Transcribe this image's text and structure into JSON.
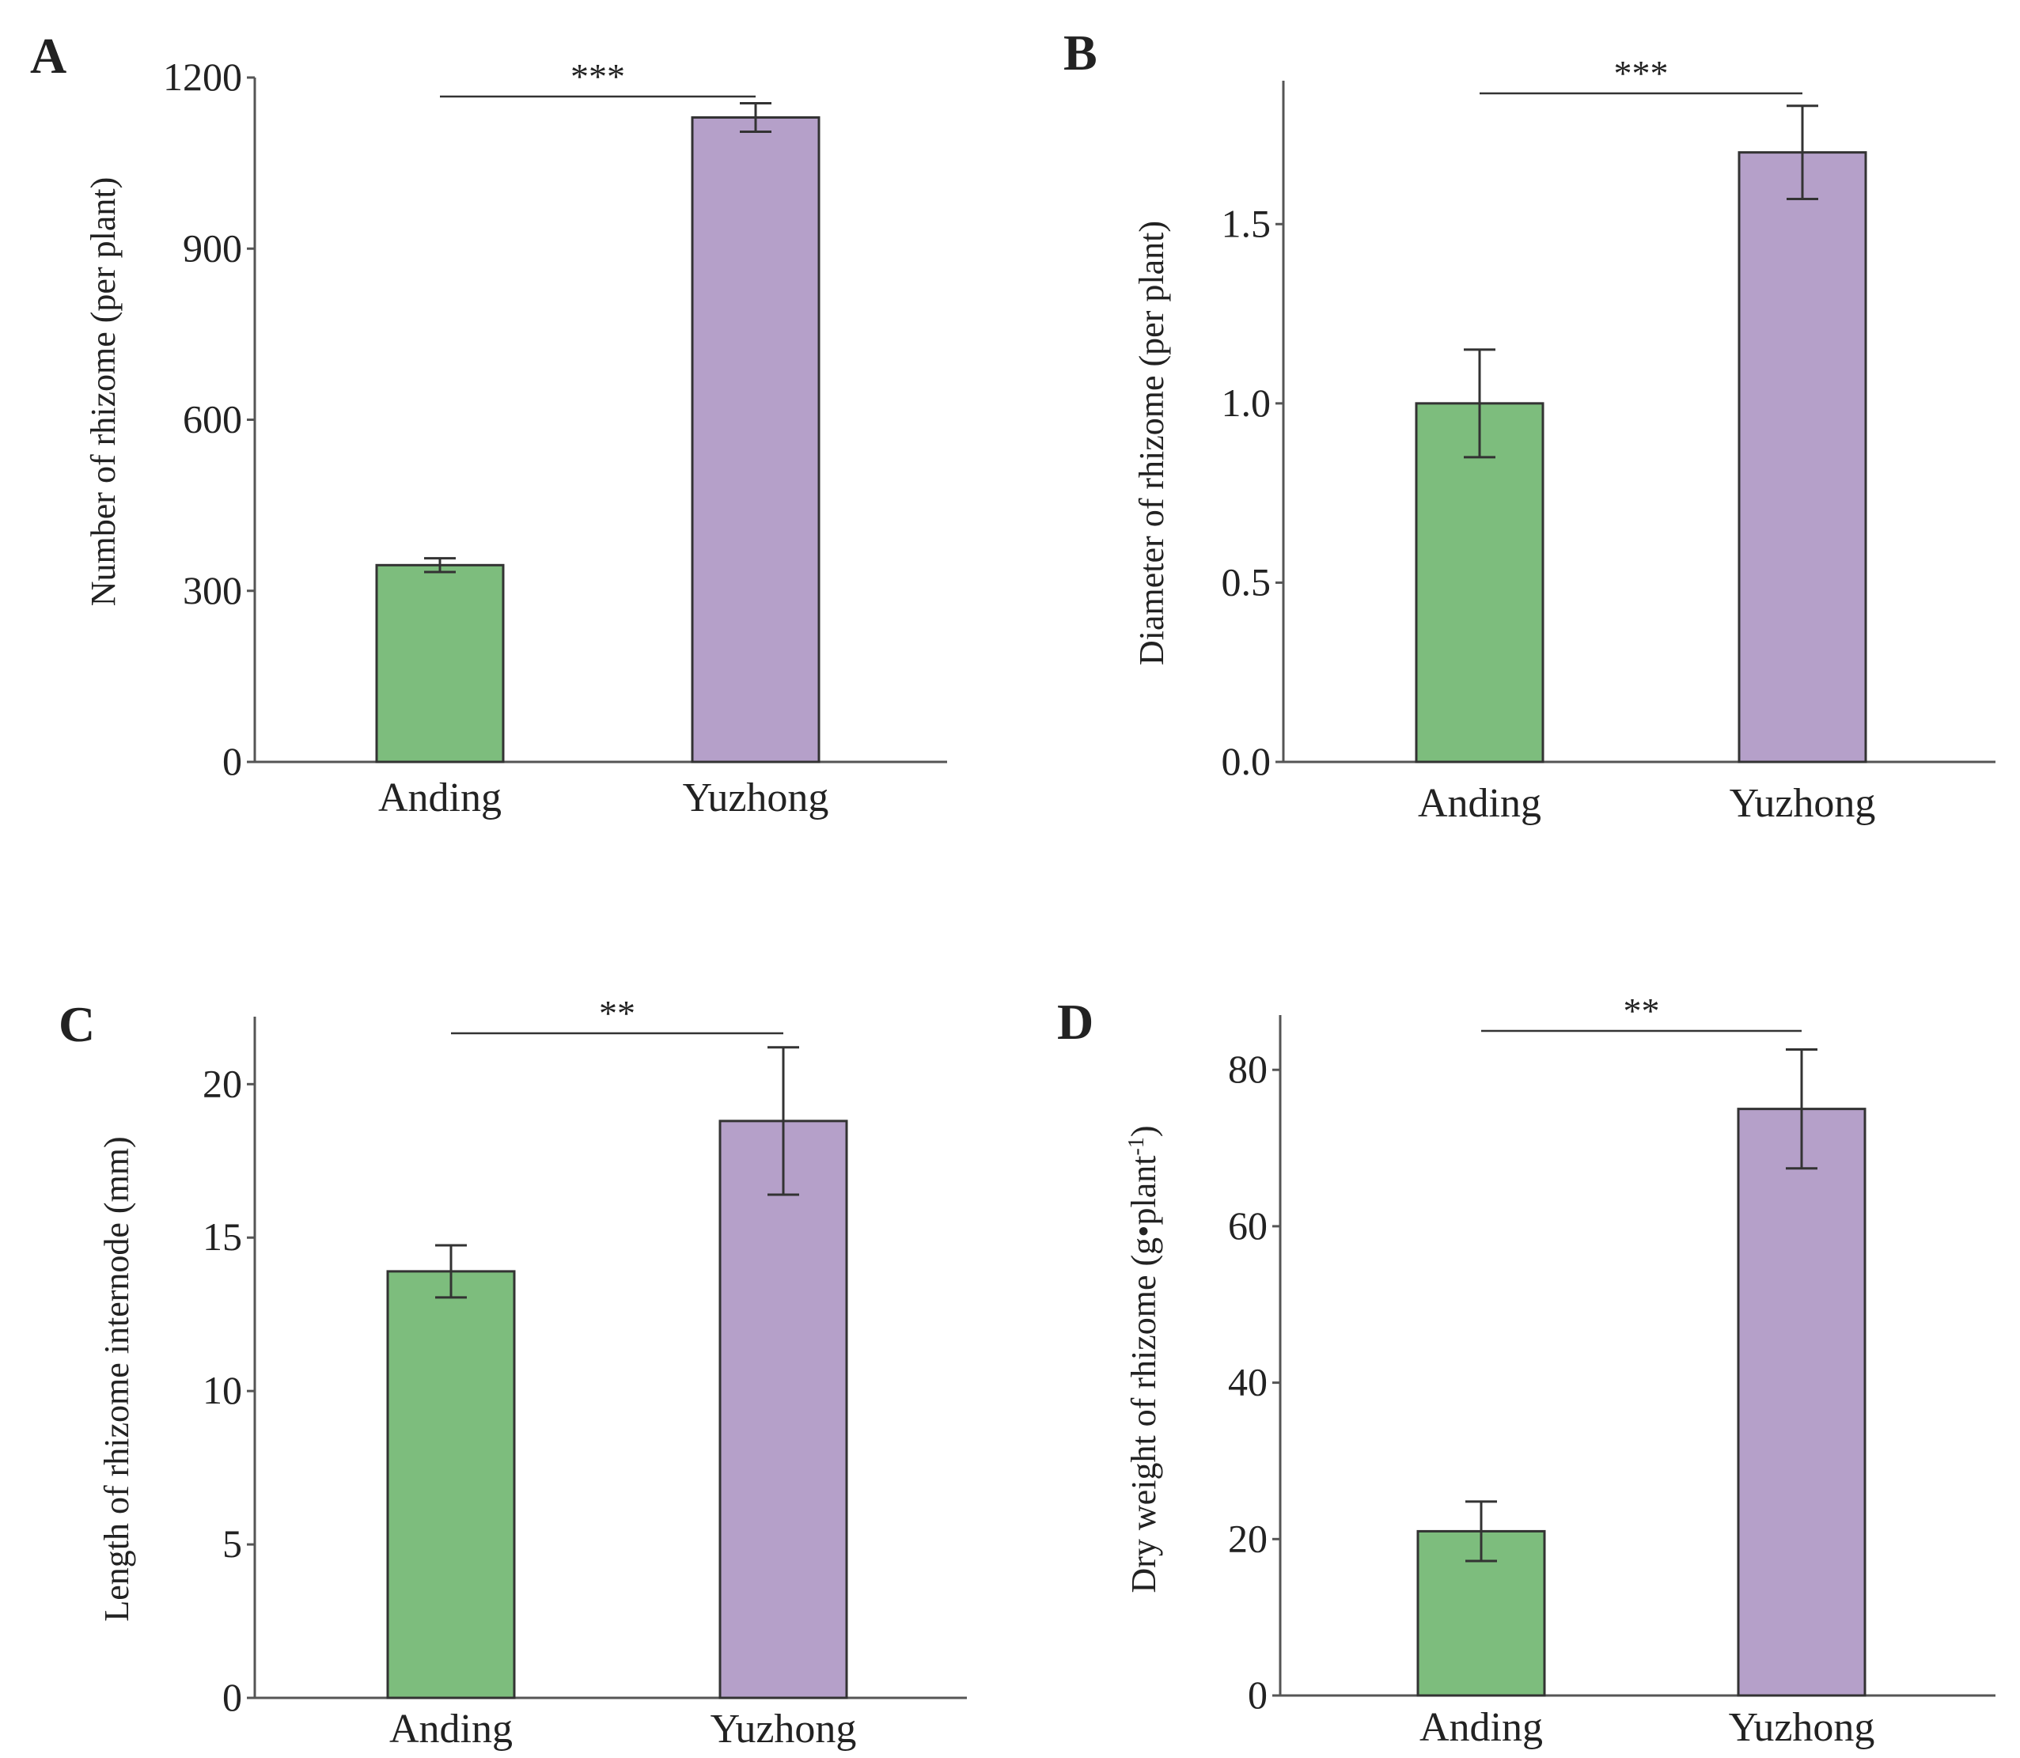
{
  "colors": {
    "anding": "#7dbd7d",
    "yuzhong": "#b5a0c9",
    "stroke": "#333333",
    "axis": "#555555"
  },
  "chart_data": [
    {
      "panel": "A",
      "type": "bar",
      "categories": [
        "Anding",
        "Yuzhong"
      ],
      "values": [
        345,
        1130
      ],
      "errors": [
        12,
        25
      ],
      "ylabel": "Number of rhizome (per plant)",
      "ylabel_sup": "",
      "ylabel_tail": "",
      "ylim": [
        0,
        1200
      ],
      "yticks": [
        0,
        300,
        600,
        900,
        1200
      ],
      "ytick_labels": [
        "0",
        "300",
        "600",
        "900",
        "1200"
      ],
      "significance": "***"
    },
    {
      "panel": "B",
      "type": "bar",
      "categories": [
        "Anding",
        "Yuzhong"
      ],
      "values": [
        1.0,
        1.7
      ],
      "errors": [
        0.15,
        0.13
      ],
      "ylabel": "Diameter of rhizome (per plant)",
      "ylabel_sup": "",
      "ylabel_tail": "",
      "ylim": [
        0,
        1.9
      ],
      "yticks": [
        0,
        0.5,
        1.0,
        1.5
      ],
      "ytick_labels": [
        "0.0",
        "0.5",
        "1.0",
        "1.5"
      ],
      "significance": "***"
    },
    {
      "panel": "C",
      "type": "bar",
      "categories": [
        "Anding",
        "Yuzhong"
      ],
      "values": [
        13.9,
        18.8
      ],
      "errors": [
        0.85,
        2.4
      ],
      "ylabel": "Length of rhizome internode (mm)",
      "ylabel_sup": "",
      "ylabel_tail": "",
      "ylim": [
        0,
        22.2
      ],
      "yticks": [
        0,
        5,
        10,
        15,
        20
      ],
      "ytick_labels": [
        "0",
        "5",
        "10",
        "15",
        "20"
      ],
      "significance": "**"
    },
    {
      "panel": "D",
      "type": "bar",
      "categories": [
        "Anding",
        "Yuzhong"
      ],
      "values": [
        21,
        75
      ],
      "errors": [
        3.8,
        7.6
      ],
      "ylabel": "Dry weight of rhizome (g•plant",
      "ylabel_sup": "-1",
      "ylabel_tail": ")",
      "ylim": [
        0,
        87
      ],
      "yticks": [
        0,
        20,
        40,
        60,
        80
      ],
      "ytick_labels": [
        "0",
        "20",
        "40",
        "60",
        "80"
      ],
      "significance": "**"
    }
  ]
}
